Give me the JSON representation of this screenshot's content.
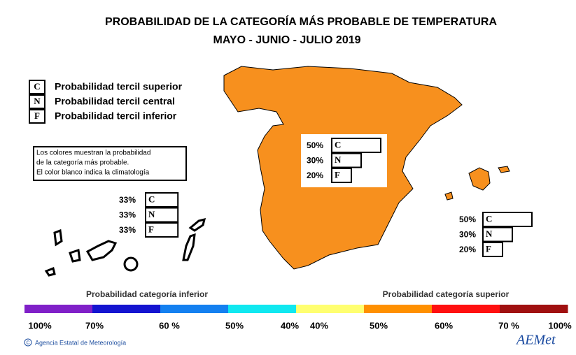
{
  "title": [
    "PROBABILIDAD DE LA CATEGORÍA MÁS PROBABLE DE TEMPERATURA",
    "MAYO - JUNIO - JULIO 2019"
  ],
  "legend": [
    {
      "letter": "C",
      "text": "Probabilidad  tercil superior"
    },
    {
      "letter": "N",
      "text": "Probabilidad  tercil central"
    },
    {
      "letter": "F",
      "text": "Probabilidad  tercil inferior"
    }
  ],
  "note": [
    "Los colores muestran la probabilidad",
    "de la categoría más probable.",
    "El color blanco indica la climatología"
  ],
  "map_color": "#f7901e",
  "panels": {
    "peninsula": [
      {
        "letter": "C",
        "value": 50,
        "label": "50%"
      },
      {
        "letter": "N",
        "value": 30,
        "label": "30%"
      },
      {
        "letter": "F",
        "value": 20,
        "label": "20%"
      }
    ],
    "canarias": [
      {
        "letter": "C",
        "value": 33,
        "label": "33%"
      },
      {
        "letter": "N",
        "value": 33,
        "label": "33%"
      },
      {
        "letter": "F",
        "value": 33,
        "label": "33%"
      }
    ],
    "baleares": [
      {
        "letter": "C",
        "value": 50,
        "label": "50%"
      },
      {
        "letter": "N",
        "value": 30,
        "label": "30%"
      },
      {
        "letter": "F",
        "value": 20,
        "label": "20%"
      }
    ]
  },
  "scale": {
    "left_title": "Probabilidad categoría inferior",
    "right_title": "Probabilidad categoría superior",
    "colors": [
      "#8020c8",
      "#1414d0",
      "#1480f0",
      "#10e8f0",
      "#ffff70",
      "#ff9000",
      "#ff1010",
      "#a01010"
    ],
    "labels": [
      "100%",
      "70%",
      "60 %",
      "50%",
      "40%",
      "40%",
      "50%",
      "60%",
      "70 %",
      "100%"
    ]
  },
  "footer": {
    "agency": "Agencia Estatal de Meteorología",
    "logo": "AEMet"
  }
}
